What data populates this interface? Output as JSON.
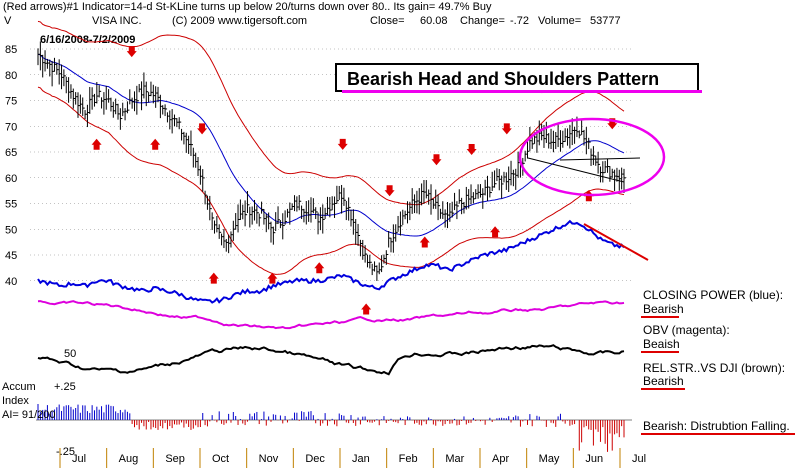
{
  "header": {
    "line1": "(Red arrows)#1 Indicator=14-d St-KLine turns up below 20/turns down over 80.. Its gain= 49.7% Buy",
    "ticker": "V",
    "company": "VISA INC.",
    "copyright": "(C) 2009 www.tigersoft.com",
    "close_label": "Close=",
    "close_value": "60.08",
    "change_label": "Change=",
    "change_value": "-.72",
    "volume_label": "Volume=",
    "volume_value": "53777",
    "date_range": "6/16/2008-7/2/2009"
  },
  "pattern_title": "Bearish Head and Shoulders Pattern",
  "legend": {
    "closing_power": "CLOSING POWER (blue):",
    "closing_power_status": "Bearish",
    "obv": "OBV (magenta):",
    "obv_status": "Beaish",
    "relstr": "REL.STR..VS DJI (brown):",
    "relstr_status": "Bearish",
    "accum": "Bearish: Distrubtion Falling."
  },
  "accum": {
    "title_line1": "Accum",
    "title_line2": "Index",
    "title_line3": "AI= 91/200",
    "plus_label": "+.25",
    "minus_label": "-.25",
    "relstr_tick": "50"
  },
  "colors": {
    "price": "#000000",
    "band": "#cc0000",
    "ma": "#0000cc",
    "closing_power": "#0000dd",
    "obv": "#dd00dd",
    "relstr": "#000000",
    "accum_pos": "#0000cc",
    "accum_neg": "#cc0000",
    "grid": "#888888",
    "ellipse": "#ee00ee",
    "arrow": "#dd0000"
  },
  "chart_data": {
    "type": "line",
    "title": "VISA INC.",
    "ylim": [
      38,
      87
    ],
    "yticks": [
      40,
      45,
      50,
      55,
      60,
      65,
      70,
      75,
      80,
      85
    ],
    "months": [
      "Jul",
      "Aug",
      "Sep",
      "Oct",
      "Nov",
      "Dec",
      "Jan",
      "Feb",
      "Mar",
      "Apr",
      "May",
      "Jun",
      "Jul"
    ],
    "grid": true,
    "price_close_weekly": [
      84,
      82,
      80,
      76,
      73,
      76,
      75,
      72,
      75,
      77,
      76,
      73,
      70,
      66,
      60,
      50,
      47,
      52,
      54,
      53,
      50,
      52,
      55,
      54,
      52,
      55,
      57,
      51,
      44,
      41,
      48,
      52,
      55,
      57,
      54,
      52,
      55,
      56,
      57,
      59,
      60,
      62,
      67,
      68,
      67,
      68,
      70,
      66,
      62,
      61,
      60
    ],
    "sell_arrows_at_week": [
      8,
      14,
      26,
      30,
      34,
      37,
      40,
      43,
      49
    ],
    "buy_arrows_at_week": [
      5,
      10,
      15,
      20,
      24,
      28,
      33,
      39,
      47
    ]
  }
}
